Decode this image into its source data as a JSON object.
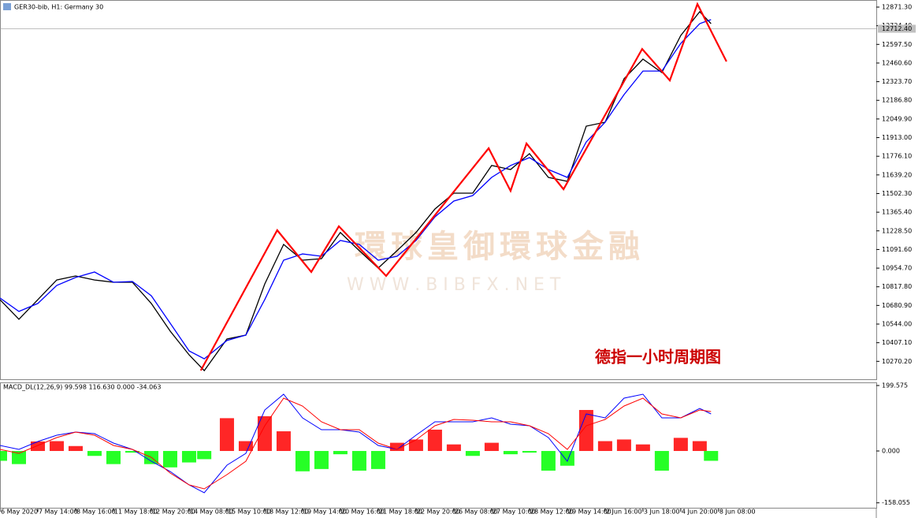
{
  "header": {
    "title": "GER30-bib, H1:  Germany 30"
  },
  "watermark": {
    "brand": "環球皇御環球金融",
    "url": "W W W . B I B F X . N E T"
  },
  "chart_data": [
    {
      "type": "line",
      "annotation": "德指一小时周期图",
      "x": [
        0,
        5,
        10,
        15,
        20,
        25,
        30,
        35,
        40,
        45,
        50,
        54,
        60,
        65,
        70,
        75,
        80,
        85,
        90,
        95,
        100,
        105,
        110,
        115,
        120,
        125,
        130,
        135,
        140,
        145,
        150,
        155,
        160,
        165,
        170,
        175,
        180,
        185,
        188
      ],
      "series": [
        {
          "color": "#000000",
          "values": [
            10723,
            10579,
            10723,
            10868,
            10897,
            10868,
            10851,
            10851,
            10695,
            10492,
            10318,
            10202,
            10434,
            10463,
            10839,
            11129,
            11013,
            11024,
            11216,
            11083,
            10955,
            11083,
            11216,
            11389,
            11505,
            11505,
            11708,
            11679,
            11795,
            11621,
            11592,
            11997,
            12026,
            12345,
            12489,
            12391,
            12663,
            12837,
            12750
          ]
        },
        {
          "color": "#0000ff",
          "values": [
            10735,
            10637,
            10695,
            10828,
            10886,
            10926,
            10851,
            10857,
            10752,
            10550,
            10347,
            10289,
            10423,
            10463,
            10724,
            11013,
            11059,
            11042,
            11158,
            11129,
            11013,
            11042,
            11158,
            11331,
            11447,
            11488,
            11621,
            11708,
            11766,
            11679,
            11621,
            11881,
            12026,
            12229,
            12402,
            12402,
            12605,
            12750,
            12779
          ]
        },
        {
          "color": "#ff0000",
          "x": [
            53.1,
            73.3,
            82.3,
            89.6,
            102.1,
            129.2,
            135,
            139.2,
            149,
            169.8,
            177.1,
            184.4,
            192.1
          ],
          "values": [
            10203,
            11233,
            10926,
            11262,
            10897,
            11835,
            11522,
            11870,
            11534,
            12564,
            12333,
            12894,
            12472
          ]
        }
      ],
      "xlim": [
        0,
        231.7
      ],
      "ylim": [
        10133.1,
        12923.4
      ],
      "yticks": [
        {
          "value": 12871.3,
          "label": "12871.30"
        },
        {
          "value": 12734.4,
          "label": "12734.40"
        },
        {
          "value": 12597.5,
          "label": "12597.50"
        },
        {
          "value": 12460.6,
          "label": "12460.60"
        },
        {
          "value": 12323.7,
          "label": "12323.70"
        },
        {
          "value": 12186.8,
          "label": "12186.80"
        },
        {
          "value": 12049.9,
          "label": "12049.90"
        },
        {
          "value": 11913,
          "label": "11913.00"
        },
        {
          "value": 11776.1,
          "label": "11776.10"
        },
        {
          "value": 11639.2,
          "label": "11639.20"
        },
        {
          "value": 11502.3,
          "label": "11502.30"
        },
        {
          "value": 11365.4,
          "label": "11365.40"
        },
        {
          "value": 11228.5,
          "label": "11228.50"
        },
        {
          "value": 11091.6,
          "label": "11091.60"
        },
        {
          "value": 10954.7,
          "label": "10954.70"
        },
        {
          "value": 10817.8,
          "label": "10817.80"
        },
        {
          "value": 10680.9,
          "label": "10680.90"
        },
        {
          "value": 10544,
          "label": "10544.00"
        },
        {
          "value": 10407.1,
          "label": "10407.10"
        },
        {
          "value": 10270.2,
          "label": "10270.20"
        }
      ],
      "current_price": {
        "value": 12712.4,
        "label": "12712.40"
      },
      "xticks": [
        {
          "value": 0,
          "label": "6 May 2020"
        },
        {
          "value": 10,
          "label": "7 May 14:00"
        },
        {
          "value": 20,
          "label": "8 May 16:00"
        },
        {
          "value": 30,
          "label": "11 May 18:00"
        },
        {
          "value": 40,
          "label": "12 May 20:00"
        },
        {
          "value": 50,
          "label": "14 May 08:00"
        },
        {
          "value": 60,
          "label": "15 May 10:00"
        },
        {
          "value": 70,
          "label": "18 May 12:00"
        },
        {
          "value": 80,
          "label": "19 May 14:00"
        },
        {
          "value": 90,
          "label": "20 May 16:00"
        },
        {
          "value": 100,
          "label": "21 May 18:00"
        },
        {
          "value": 110,
          "label": "22 May 20:00"
        },
        {
          "value": 120,
          "label": "26 May 08:00"
        },
        {
          "value": 130,
          "label": "27 May 10:00"
        },
        {
          "value": 140,
          "label": "28 May 12:00"
        },
        {
          "value": 150,
          "label": "29 May 14:00"
        },
        {
          "value": 160,
          "label": "2 Jun 16:00"
        },
        {
          "value": 170,
          "label": "3 Jun 18:00"
        },
        {
          "value": 180,
          "label": "4 Jun 20:00"
        },
        {
          "value": 190,
          "label": "8 Jun 08:00"
        }
      ]
    },
    {
      "type": "macd",
      "title": "MACD_DL(12,26,9) 99.598 116.630 0.000 -34.063",
      "x": [
        0,
        5,
        10,
        15,
        20,
        25,
        30,
        35,
        40,
        45,
        50,
        54,
        60,
        65,
        70,
        75,
        80,
        85,
        90,
        95,
        100,
        105,
        110,
        115,
        120,
        125,
        130,
        135,
        140,
        145,
        150,
        155,
        160,
        165,
        170,
        175,
        180,
        185,
        188
      ],
      "histogram": {
        "positive_color": "#ff0000",
        "negative_color": "#00ff00",
        "values": [
          -30,
          -40,
          29,
          30,
          15,
          -15,
          -40,
          -5,
          -40,
          -50,
          -35,
          -25,
          100,
          30,
          106,
          60,
          -62,
          -55,
          -10,
          -60,
          -55,
          25,
          35,
          65,
          20,
          -15,
          25,
          -10,
          -5,
          -60,
          -45,
          125,
          30,
          35,
          20,
          -60,
          40,
          30,
          -30
        ]
      },
      "series": [
        {
          "color": "#0000ff",
          "values": [
            16.8,
            4.8,
            28.8,
            48.1,
            57.7,
            52.9,
            24.0,
            4.8,
            -31.3,
            -62.5,
            -103.4,
            -127.4,
            -43.3,
            -7.2,
            125.0,
            173.1,
            101.0,
            64.9,
            64.9,
            57.7,
            16.8,
            4.8,
            48.1,
            88.9,
            88.9,
            88.9,
            101.0,
            81.8,
            76.9,
            40.9,
            -31.3,
            113.0,
            101.0,
            161.1,
            173.1,
            101.0,
            101.0,
            129.8,
            113.0
          ]
        },
        {
          "color": "#ff0000",
          "values": [
            4.8,
            -7.2,
            16.8,
            40.9,
            57.7,
            48.1,
            16.8,
            4.8,
            -19.2,
            -67.3,
            -103.4,
            -115.4,
            -72.1,
            -31.3,
            76.9,
            161.1,
            137.0,
            88.9,
            64.9,
            64.9,
            24.0,
            4.8,
            33.7,
            76.9,
            96.2,
            93.8,
            88.9,
            88.9,
            76.9,
            52.9,
            4.8,
            76.9,
            96.2,
            137.0,
            161.1,
            113.0,
            101.0,
            125.0,
            120.2
          ]
        }
      ],
      "xlim": [
        0,
        231.7
      ],
      "ylim": [
        -175.5,
        209.1
      ],
      "yticks": [
        {
          "value": 199.575,
          "label": "199.575"
        },
        {
          "value": 0,
          "label": "0.000"
        },
        {
          "value": -158.055,
          "label": "-158.055"
        }
      ]
    }
  ]
}
